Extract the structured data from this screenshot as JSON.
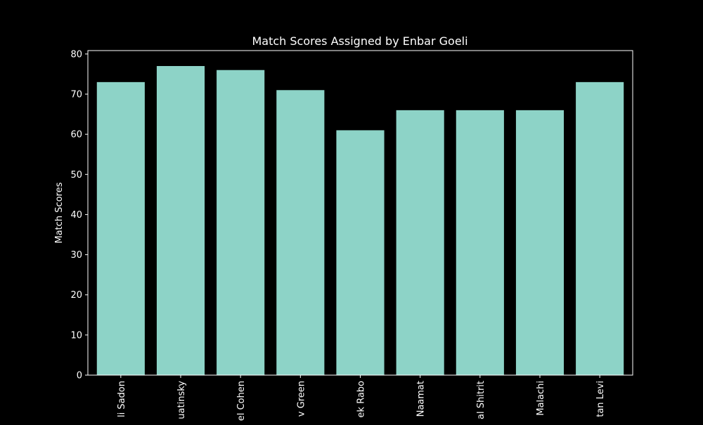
{
  "chart_data": {
    "type": "bar",
    "title": "Match Scores Assigned by Enbar Goeli",
    "xlabel": "",
    "ylabel": "Match Scores",
    "categories": [
      "li Sadon",
      "uatinsky",
      "el Cohen",
      "v Green",
      "ek Rabo",
      "Naamat",
      "al Shitrit",
      "Malachi",
      "tan Levi"
    ],
    "values": [
      73,
      77,
      76,
      71,
      61,
      66,
      66,
      66,
      73
    ],
    "ylim": [
      0,
      80.85
    ],
    "yticks": [
      "0",
      "10",
      "20",
      "30",
      "40",
      "50",
      "60",
      "70",
      "80"
    ],
    "grid": false,
    "bar_color": "#8dd3c7",
    "background_color": "#000000",
    "axis_color": "#ffffff"
  }
}
